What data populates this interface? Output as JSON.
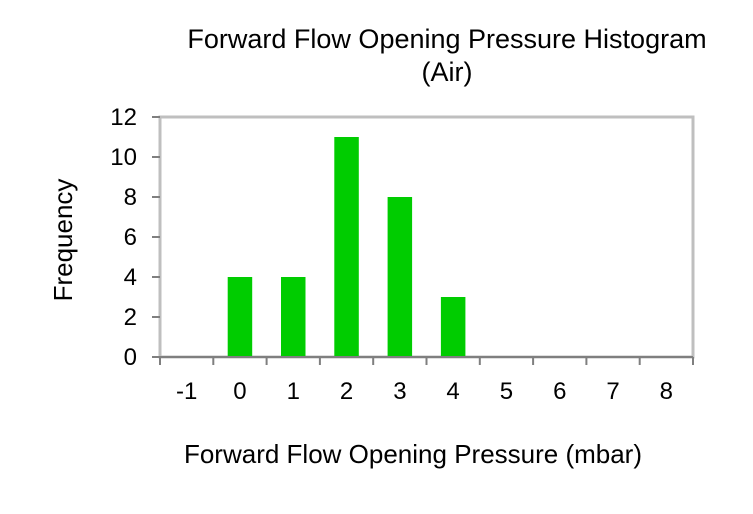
{
  "chart_data": {
    "type": "bar",
    "title_line1": "Forward Flow Opening Pressure Histogram",
    "title_line2": "(Air)",
    "xlabel": "Forward Flow Opening Pressure (mbar)",
    "ylabel": "Frequency",
    "categories": [
      "-1",
      "0",
      "1",
      "2",
      "3",
      "4",
      "5",
      "6",
      "7",
      "8"
    ],
    "values": [
      0,
      4,
      4,
      11,
      8,
      3,
      0,
      0,
      0,
      0
    ],
    "ylim": [
      0,
      12
    ],
    "yticks": [
      "0",
      "2",
      "4",
      "6",
      "8",
      "10",
      "12"
    ],
    "grid": false,
    "legend": "none",
    "colors": {
      "bar": "#00cc00",
      "frame": "#bfbfbf"
    }
  }
}
